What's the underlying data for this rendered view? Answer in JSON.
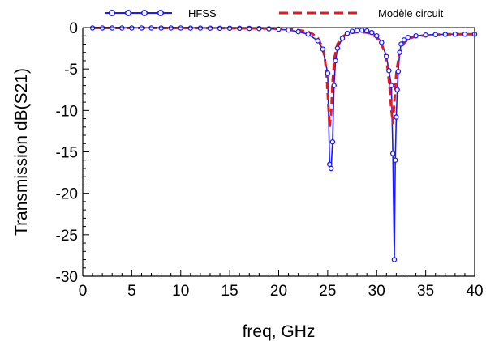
{
  "chart_data": {
    "type": "line",
    "title": "",
    "xlabel": "freq, GHz",
    "ylabel": "Transmission dB(S21)",
    "xlim": [
      0,
      40
    ],
    "ylim": [
      -30,
      0
    ],
    "x_ticks": [
      "0",
      "5",
      "10",
      "15",
      "20",
      "25",
      "30",
      "35",
      "40"
    ],
    "y_ticks": [
      "0",
      "-5",
      "-10",
      "-15",
      "-20",
      "-25",
      "-30"
    ],
    "legend_position": "top",
    "grid": false,
    "series": [
      {
        "name": "HFSS",
        "color": "#1a1aff",
        "marker": "circle",
        "style": "solid",
        "x": [
          1,
          2,
          3,
          4,
          5,
          6,
          7,
          8,
          9,
          10,
          11,
          12,
          13,
          14,
          15,
          16,
          17,
          18,
          19,
          20,
          21,
          22,
          23,
          24,
          24.5,
          25,
          25.2,
          25.35,
          25.5,
          25.65,
          25.8,
          26,
          26.5,
          27,
          27.5,
          28,
          28.5,
          29,
          29.5,
          30,
          30.5,
          31,
          31.25,
          31.5,
          31.65,
          31.8,
          31.9,
          32.0,
          32.1,
          32.2,
          32.35,
          32.5,
          32.8,
          33.2,
          34,
          35,
          36,
          37,
          38,
          39,
          40
        ],
        "y": [
          -0.05,
          -0.05,
          -0.05,
          -0.05,
          -0.05,
          -0.05,
          -0.05,
          -0.05,
          -0.05,
          -0.05,
          -0.06,
          -0.06,
          -0.07,
          -0.08,
          -0.08,
          -0.09,
          -0.1,
          -0.12,
          -0.15,
          -0.2,
          -0.3,
          -0.5,
          -0.8,
          -1.6,
          -2.6,
          -5.5,
          -16.5,
          -17.0,
          -13.8,
          -7.0,
          -4.0,
          -2.5,
          -1.3,
          -0.7,
          -0.45,
          -0.35,
          -0.32,
          -0.4,
          -0.6,
          -1.0,
          -1.8,
          -3.5,
          -5.2,
          -7.0,
          -15.2,
          -28.0,
          -16.0,
          -10.8,
          -7.5,
          -5.3,
          -3.0,
          -2.0,
          -1.5,
          -1.2,
          -1.0,
          -0.9,
          -0.85,
          -0.82,
          -0.8,
          -0.8,
          -0.8
        ]
      },
      {
        "name": "Modèle circuit",
        "color": "#e8191e",
        "marker": "none",
        "style": "dashed",
        "x": [
          1,
          5,
          10,
          15,
          18,
          20,
          21,
          22,
          23,
          23.5,
          24,
          24.4,
          24.7,
          24.9,
          25.05,
          25.2,
          25.35,
          25.5,
          25.7,
          26,
          26.5,
          27,
          28,
          29,
          29.5,
          30,
          30.5,
          30.8,
          31.1,
          31.3,
          31.5,
          31.65,
          31.8,
          32.0,
          32.3,
          32.7,
          33.2,
          34,
          36,
          38,
          40
        ],
        "y": [
          -0.05,
          -0.05,
          -0.06,
          -0.08,
          -0.1,
          -0.15,
          -0.2,
          -0.3,
          -0.5,
          -0.8,
          -1.3,
          -2.2,
          -3.6,
          -5.8,
          -9.0,
          -12.0,
          -10.5,
          -6.5,
          -3.6,
          -2.0,
          -1.1,
          -0.75,
          -0.55,
          -0.6,
          -0.8,
          -1.2,
          -2.0,
          -3.0,
          -4.8,
          -7.0,
          -10.0,
          -11.5,
          -9.0,
          -5.5,
          -3.2,
          -2.0,
          -1.4,
          -1.05,
          -0.85,
          -0.8,
          -0.8
        ]
      }
    ]
  }
}
